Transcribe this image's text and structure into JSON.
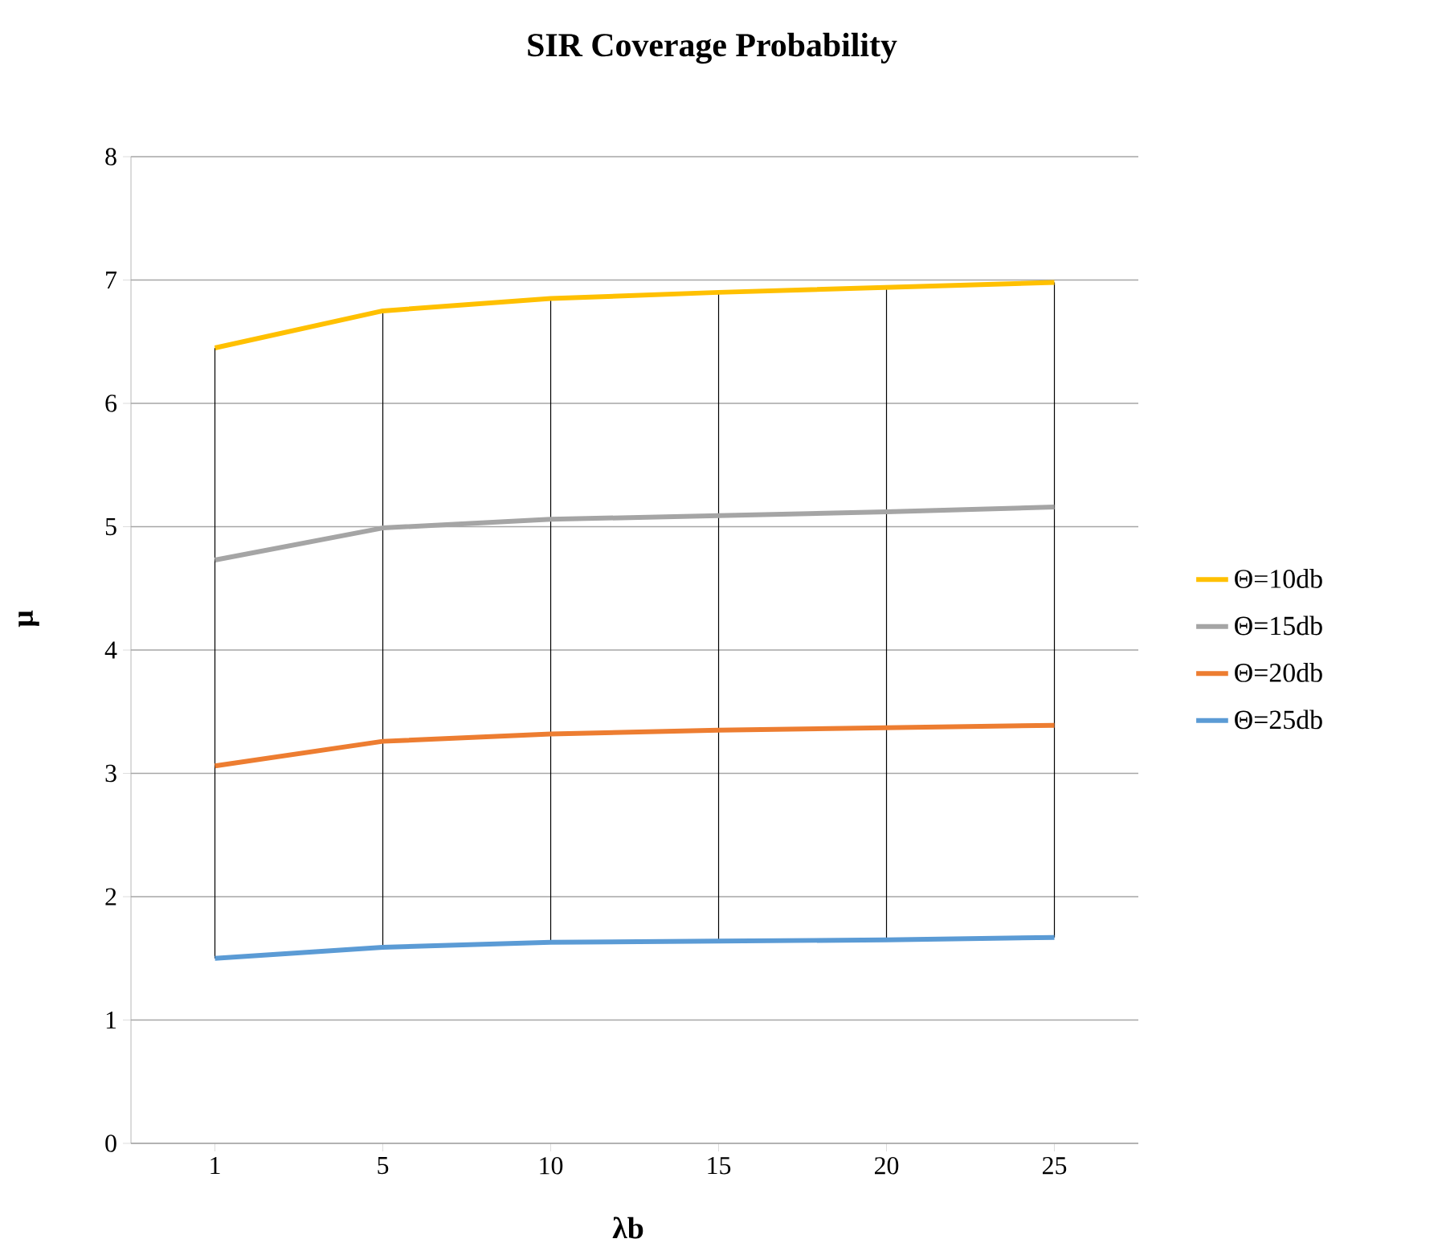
{
  "chart_data": {
    "type": "line",
    "title": "SIR Coverage Probability",
    "xlabel": "λb",
    "ylabel": "μ",
    "categories": [
      "1",
      "5",
      "10",
      "15",
      "20",
      "25"
    ],
    "series": [
      {
        "name": "Θ=10db",
        "color": "#ffc000",
        "values": [
          6.45,
          6.75,
          6.85,
          6.9,
          6.94,
          6.98
        ],
        "errors": [
          [
            1.5,
            6.45
          ],
          [
            1.59,
            6.75
          ],
          [
            1.63,
            6.85
          ],
          [
            1.64,
            6.9
          ],
          [
            1.65,
            6.94
          ],
          [
            1.67,
            6.98
          ]
        ]
      },
      {
        "name": "Θ=15db",
        "color": "#a5a5a5",
        "values": [
          4.73,
          4.99,
          5.06,
          5.09,
          5.12,
          5.16
        ]
      },
      {
        "name": "Θ=20db",
        "color": "#ed7d31",
        "values": [
          3.06,
          3.26,
          3.32,
          3.35,
          3.37,
          3.39
        ]
      },
      {
        "name": "Θ=25db",
        "color": "#5b9bd5",
        "values": [
          1.5,
          1.59,
          1.63,
          1.64,
          1.65,
          1.67
        ]
      }
    ],
    "ylim": [
      0,
      8
    ],
    "yticks": [
      0,
      1,
      2,
      3,
      4,
      5,
      6,
      7,
      8
    ],
    "grid": "y",
    "legend": "right",
    "marker": "none",
    "line_style": "solid"
  }
}
